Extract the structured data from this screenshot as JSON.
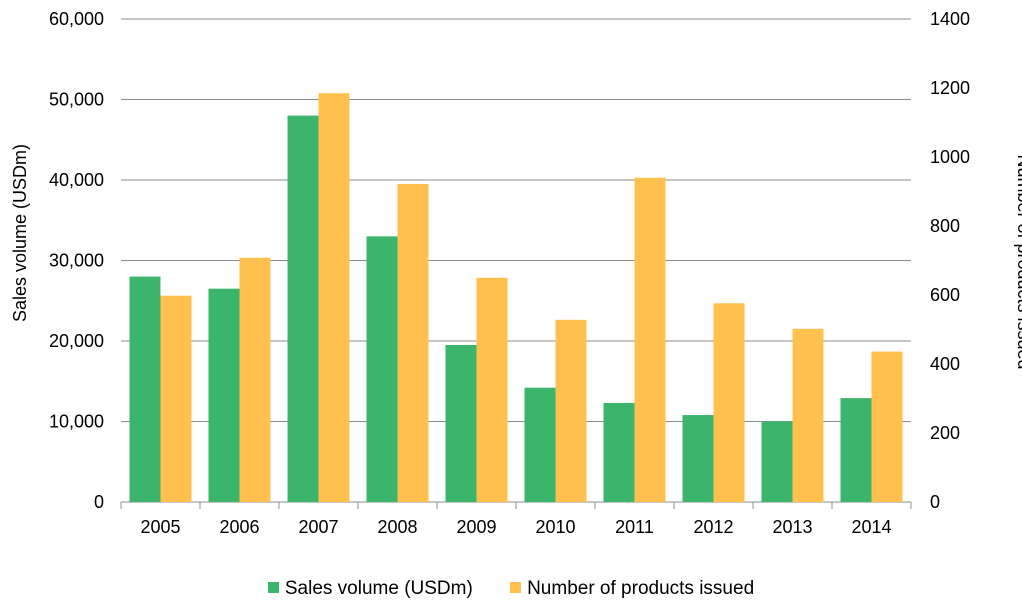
{
  "chart_data": {
    "type": "bar",
    "categories": [
      "2005",
      "2006",
      "2007",
      "2008",
      "2009",
      "2010",
      "2011",
      "2012",
      "2013",
      "2014"
    ],
    "series": [
      {
        "name": "Sales volume (USDm)",
        "axis": "left",
        "color": "#3bb56c",
        "values": [
          28000,
          26500,
          48000,
          33000,
          19500,
          14200,
          12300,
          10800,
          10000,
          12900
        ]
      },
      {
        "name": "Number of products issued",
        "axis": "right",
        "color": "#ffc04d",
        "values": [
          598,
          708,
          1185,
          922,
          650,
          528,
          940,
          576,
          502,
          436
        ]
      }
    ],
    "y_left": {
      "label": "Sales volume  (USDm)",
      "lim": [
        0,
        60000
      ],
      "ticks": [
        "0",
        "10,000",
        "20,000",
        "30,000",
        "40,000",
        "50,000",
        "60,000"
      ]
    },
    "y_right": {
      "label": "Number  of products issued",
      "lim": [
        0,
        1400
      ],
      "ticks": [
        "0",
        "200",
        "400",
        "600",
        "800",
        "1000",
        "1200",
        "1400"
      ]
    },
    "grid": true,
    "legend_position": "bottom"
  }
}
